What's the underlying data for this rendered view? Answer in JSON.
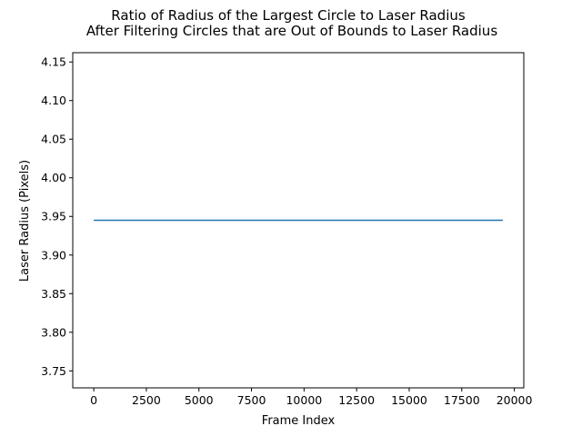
{
  "chart_data": {
    "type": "line",
    "title": "Ratio of Radius of the Largest Circle to Laser Radius\nAfter Filtering Circles that are Out of Bounds to Laser Radius",
    "title_lines": [
      "Ratio of Radius of the Largest Circle to Laser Radius",
      "After Filtering Circles that are Out of Bounds to Laser Radius"
    ],
    "xlabel": "Frame Index",
    "ylabel": "Laser Radius (Pixels)",
    "xlim": [
      -1000,
      20450
    ],
    "ylim": [
      3.728,
      4.162
    ],
    "xticks": [
      0,
      2500,
      5000,
      7500,
      10000,
      12500,
      15000,
      17500,
      20000
    ],
    "xtick_labels": [
      "0",
      "2500",
      "5000",
      "7500",
      "10000",
      "12500",
      "15000",
      "17500",
      "20000"
    ],
    "yticks": [
      3.75,
      3.8,
      3.85,
      3.9,
      3.95,
      4.0,
      4.05,
      4.1,
      4.15
    ],
    "ytick_labels": [
      "3.75",
      "3.80",
      "3.85",
      "3.90",
      "3.95",
      "4.00",
      "4.05",
      "4.10",
      "4.15"
    ],
    "grid": false,
    "series": [
      {
        "color": "#1f77b4",
        "x": [
          0,
          19450
        ],
        "y": [
          3.945,
          3.945
        ]
      }
    ]
  }
}
